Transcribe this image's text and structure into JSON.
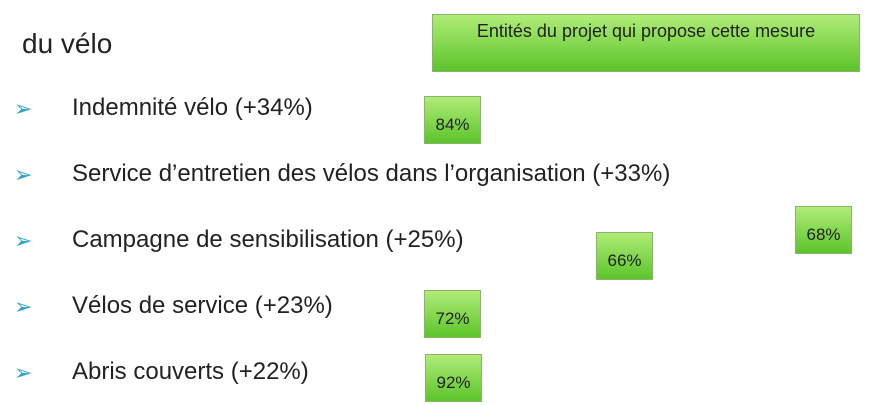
{
  "title": "du vélo",
  "legend": "Entités du projet qui propose cette mesure",
  "items": [
    {
      "text": "Indemnité vélo (+34%)",
      "badge": "84%"
    },
    {
      "text": "Service d’entretien des vélos dans l’organisation (+33%)",
      "badge": "68%"
    },
    {
      "text": "Campagne de sensibilisation (+25%)",
      "badge": "66%"
    },
    {
      "text": "Vélos de service (+23%)",
      "badge": "72%"
    },
    {
      "text": "Abris couverts (+22%)",
      "badge": "92%"
    }
  ]
}
